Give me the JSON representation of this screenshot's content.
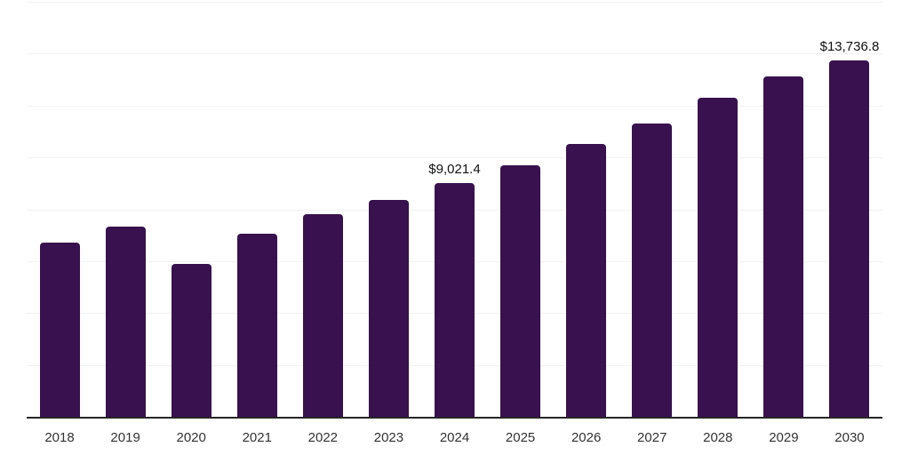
{
  "chart_data": {
    "type": "bar",
    "title": "",
    "xlabel": "",
    "ylabel": "",
    "categories": [
      "2018",
      "2019",
      "2020",
      "2021",
      "2022",
      "2023",
      "2024",
      "2025",
      "2026",
      "2027",
      "2028",
      "2029",
      "2030"
    ],
    "values": [
      6700,
      7330,
      5910,
      7050,
      7800,
      8370,
      9021.4,
      9700,
      10510,
      11310,
      12300,
      13130,
      13736.8
    ],
    "value_labels": [
      {
        "category": "2024",
        "text": "$9,021.4"
      },
      {
        "category": "2030",
        "text": "$13,736.8"
      }
    ],
    "ylim": [
      0,
      16000
    ],
    "gridline_step": 2000,
    "grid": true,
    "legend_position": "none",
    "colors": {
      "bar": "#38114e",
      "gridline": "#f2f2f2",
      "axis_line": "#262626",
      "tick_label": "#333333",
      "data_label": "#111111",
      "background": "#ffffff"
    }
  }
}
